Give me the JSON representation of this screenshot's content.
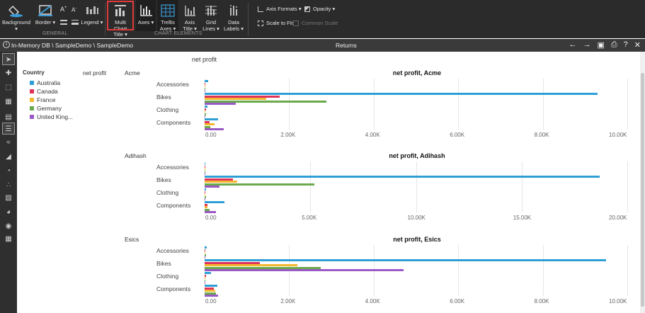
{
  "ribbon": {
    "general": {
      "background_label": "Background ▾",
      "border_label": "Border ▾",
      "legend_label": "Legend ▾",
      "group_label": "GENERAL"
    },
    "chart_elements": {
      "multi_chart_title_line1": "Multi Chart",
      "multi_chart_title_line2": "Title ▾",
      "axes_label": "Axes ▾",
      "trellis_line1": "Trellis",
      "trellis_line2": "Axes ▾",
      "axis_title_line1": "Axis",
      "axis_title_line2": "Title ▾",
      "grid_lines_line1": "Grid",
      "grid_lines_line2": "Lines ▾",
      "data_labels_line1": "Data",
      "data_labels_line2": "Labels ▾",
      "group_label": "CHART ELEMENTS"
    },
    "axis_formats_label": "Axis Formats ▾",
    "opacity_label": "Opacity ▾",
    "scale_to_fit_label": "Scale to Fit",
    "common_scale_label": "Common Scale"
  },
  "titlebar": {
    "path": "In-Memory DB \\ SampleDemo \\ SampleDemo",
    "title": "Returns"
  },
  "header": {
    "top_label": "net profit",
    "side_label": "net profit"
  },
  "legend": {
    "title": "Country",
    "items": [
      {
        "label": "Australia",
        "color": "#2e9fd6"
      },
      {
        "label": "Canada",
        "color": "#e0325a"
      },
      {
        "label": "France",
        "color": "#f3b82e"
      },
      {
        "label": "Germany",
        "color": "#6aaa4b"
      },
      {
        "label": "United King...",
        "color": "#9b59c6"
      }
    ]
  },
  "chart_data": [
    {
      "type": "bar",
      "orientation": "horizontal",
      "row_label": "Acme",
      "title": "net profit, Acme",
      "categories": [
        "Accessories",
        "Bikes",
        "Clothing",
        "Components"
      ],
      "xlim": [
        0,
        10000
      ],
      "ticks": [
        "0.00",
        "2.00K",
        "4.00K",
        "6.00K",
        "8.00K",
        "10.00K"
      ],
      "series": [
        {
          "name": "Australia",
          "values": [
            80,
            9300,
            60,
            320
          ]
        },
        {
          "name": "Canada",
          "values": [
            10,
            1780,
            40,
            120
          ]
        },
        {
          "name": "France",
          "values": [
            20,
            1450,
            10,
            230
          ]
        },
        {
          "name": "Germany",
          "values": [
            10,
            2880,
            30,
            140
          ]
        },
        {
          "name": "United King...",
          "values": [
            10,
            740,
            20,
            450
          ]
        }
      ]
    },
    {
      "type": "bar",
      "orientation": "horizontal",
      "row_label": "Adihash",
      "title": "net profit, Adihash",
      "categories": [
        "Accessories",
        "Bikes",
        "Clothing",
        "Components"
      ],
      "xlim": [
        0,
        20000
      ],
      "ticks": [
        "0.00",
        "5.00K",
        "10.00K",
        "15.00K",
        "20.00K"
      ],
      "series": [
        {
          "name": "Australia",
          "values": [
            40,
            18700,
            60,
            950
          ]
        },
        {
          "name": "Canada",
          "values": [
            10,
            1350,
            40,
            130
          ]
        },
        {
          "name": "France",
          "values": [
            20,
            1550,
            10,
            140
          ]
        },
        {
          "name": "Germany",
          "values": [
            10,
            5200,
            60,
            220
          ]
        },
        {
          "name": "United King...",
          "values": [
            10,
            720,
            20,
            520
          ]
        }
      ]
    },
    {
      "type": "bar",
      "orientation": "horizontal",
      "row_label": "Esics",
      "title": "net profit, Esics",
      "categories": [
        "Accessories",
        "Bikes",
        "Clothing",
        "Components"
      ],
      "xlim": [
        0,
        10000
      ],
      "ticks": [
        "0.00",
        "2.00K",
        "4.00K",
        "6.00K",
        "8.00K",
        "10.00K"
      ],
      "series": [
        {
          "name": "Australia",
          "values": [
            50,
            9500,
            150,
            300
          ]
        },
        {
          "name": "Canada",
          "values": [
            10,
            1300,
            30,
            220
          ]
        },
        {
          "name": "France",
          "values": [
            20,
            2200,
            20,
            250
          ]
        },
        {
          "name": "Germany",
          "values": [
            30,
            2750,
            10,
            270
          ]
        },
        {
          "name": "United King...",
          "values": [
            10,
            4700,
            20,
            310
          ]
        }
      ]
    }
  ]
}
